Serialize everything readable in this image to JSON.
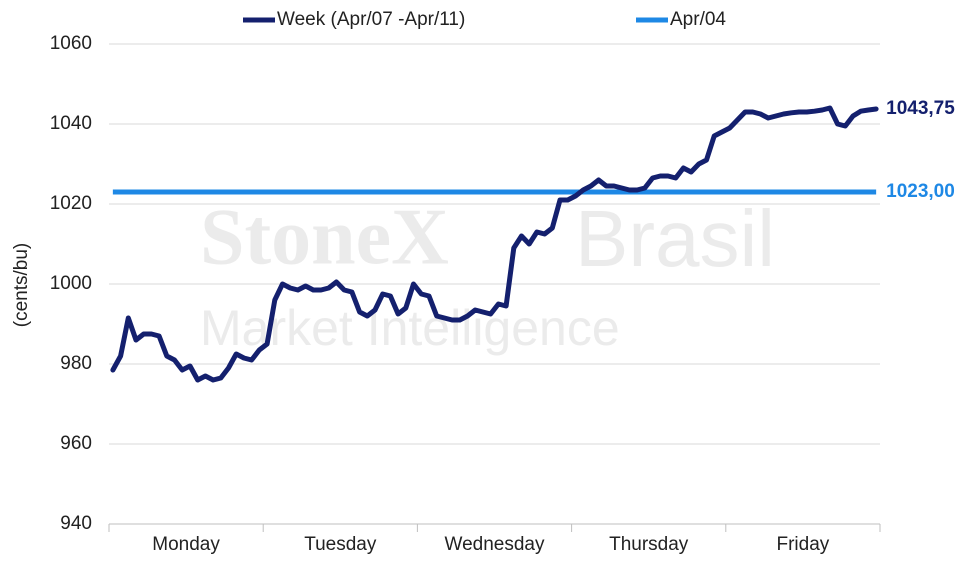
{
  "chart_data": {
    "type": "line",
    "watermark": [
      "StoneX",
      "Brasil",
      "Market Intelligence"
    ],
    "y_label": "(cents/bu)",
    "categories": [
      null,
      null,
      null,
      null,
      null,
      null,
      null,
      null,
      null,
      null,
      "Monday",
      null,
      null,
      null,
      null,
      null,
      null,
      null,
      null,
      null,
      null,
      null,
      null,
      null,
      null,
      null,
      null,
      null,
      null,
      null,
      "Tuesday",
      null,
      null,
      null,
      null,
      null,
      null,
      null,
      null,
      null,
      null,
      null,
      null,
      null,
      null,
      null,
      null,
      null,
      null,
      null,
      "Wednesday",
      null,
      null,
      null,
      null,
      null,
      null,
      null,
      null,
      null,
      null,
      null,
      null,
      null,
      null,
      null,
      null,
      null,
      null,
      null,
      "Thursday",
      null,
      null,
      null,
      null,
      null,
      null,
      null,
      null,
      null,
      null,
      null,
      null,
      null,
      null,
      null,
      null,
      null,
      null,
      null,
      "Friday",
      null,
      null,
      null,
      null,
      null,
      null,
      null,
      null,
      null
    ],
    "series": [
      {
        "name": "Week (Apr/07 -Apr/11)",
        "color": "#14206e",
        "values": [
          978.5,
          982,
          991.5,
          986,
          987.5,
          987.5,
          987,
          982,
          981,
          978.5,
          979.5,
          976,
          977,
          976,
          976.5,
          979,
          982.5,
          981.5,
          981,
          983.5,
          985,
          996,
          1000,
          999,
          998.5,
          999.5,
          998.5,
          998.5,
          999,
          1000.5,
          998.5,
          998,
          993,
          992,
          993.5,
          997.5,
          997,
          992.5,
          994,
          1000,
          997.5,
          997,
          992,
          991.5,
          991,
          991,
          992,
          993.5,
          993,
          992.5,
          995,
          994.5,
          1009,
          1012,
          1010,
          1013,
          1012.5,
          1014,
          1021,
          1021,
          1022,
          1023.5,
          1024.5,
          1026,
          1024.5,
          1024.5,
          1024,
          1023.5,
          1023.5,
          1024,
          1026.5,
          1027,
          1027,
          1026.5,
          1029,
          1028,
          1030,
          1031,
          1037,
          1038,
          1039,
          1041,
          1043,
          1043,
          1042.5,
          1041.5,
          1042,
          1042.5,
          1042.8,
          1043,
          1043,
          1043.2,
          1043.5,
          1044,
          1040,
          1039.5,
          1042,
          1043.2,
          1043.5,
          1043.75
        ],
        "value_labels": [
          null,
          null,
          null,
          null,
          null,
          null,
          null,
          null,
          null,
          null,
          null,
          null,
          null,
          null,
          null,
          null,
          null,
          null,
          null,
          null,
          null,
          null,
          null,
          null,
          null,
          null,
          null,
          null,
          null,
          null,
          null,
          null,
          null,
          null,
          null,
          null,
          null,
          null,
          null,
          null,
          null,
          null,
          null,
          null,
          null,
          null,
          null,
          null,
          null,
          null,
          null,
          null,
          null,
          null,
          null,
          null,
          null,
          null,
          null,
          null,
          null,
          null,
          null,
          null,
          null,
          null,
          null,
          null,
          null,
          null,
          null,
          null,
          null,
          null,
          null,
          null,
          null,
          null,
          null,
          null,
          null,
          null,
          null,
          null,
          null,
          null,
          null,
          null,
          null,
          null,
          null,
          null,
          null,
          null,
          null,
          null,
          null,
          null,
          null,
          "1043,75"
        ]
      },
      {
        "name": "Apr/04",
        "color": "#1e88e5",
        "value": 1023,
        "value_label": "1023,00"
      }
    ],
    "ylim": [
      940,
      1060
    ],
    "yticks": [
      940,
      960,
      980,
      1000,
      1020,
      1040,
      1060
    ],
    "grid": true
  }
}
